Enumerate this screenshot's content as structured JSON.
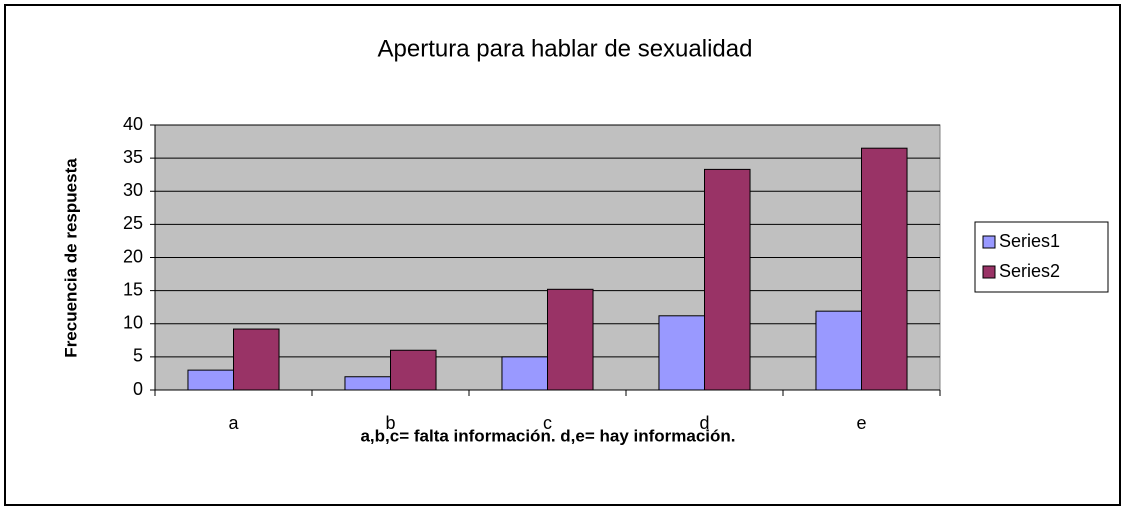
{
  "chart_data": {
    "type": "bar",
    "title": "Apertura para hablar de sexualidad",
    "x_label": "a,b,c= falta información. d,e= hay información.",
    "y_label": "Frecuencia de respuesta",
    "categories": [
      "a",
      "b",
      "c",
      "d",
      "e"
    ],
    "series": [
      {
        "name": "Series1",
        "color": "#9999ff",
        "values": [
          3,
          2,
          5,
          11.2,
          11.9
        ]
      },
      {
        "name": "Series2",
        "color": "#993366",
        "values": [
          9.2,
          6,
          15.2,
          33.3,
          36.5
        ]
      }
    ],
    "ylim": [
      0,
      40
    ],
    "yticks": [
      0,
      5,
      10,
      15,
      20,
      25,
      30,
      35,
      40
    ],
    "grid": true,
    "legend": "right"
  }
}
